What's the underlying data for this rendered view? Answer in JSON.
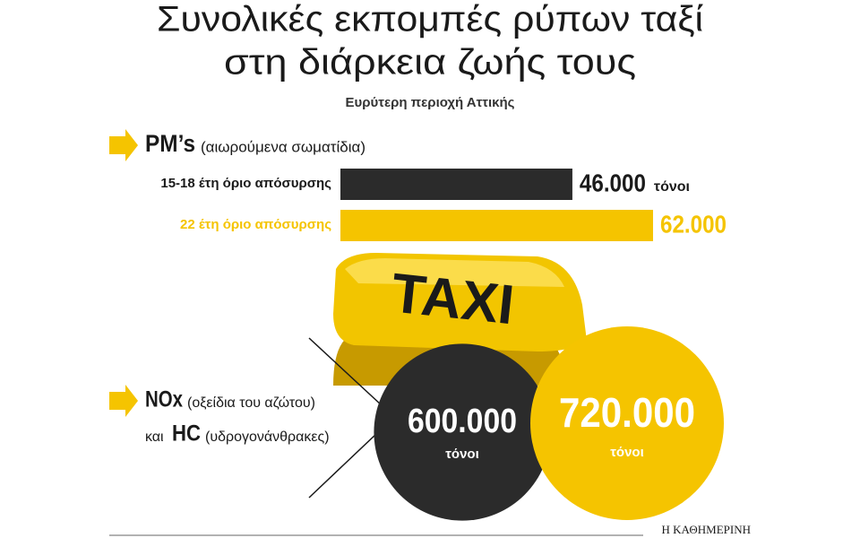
{
  "title": [
    "Συνολικές εκπομπές ρύπων ταξί",
    "στη διάρκεια ζωής τους"
  ],
  "subtitle": "Ευρύτερη περιοχή Αττικής",
  "chart_data": [
    {
      "type": "bar",
      "title": "PM’s",
      "subtitle": "(αιωρούμενα σωματίδια)",
      "categories": [
        "15-18 έτη όριο απόσυρσης",
        "22 έτη όριο απόσυρσης"
      ],
      "values": [
        46000,
        62000
      ],
      "value_labels": [
        "46.000",
        "62.000"
      ],
      "unit": "τόνοι",
      "colors": [
        "#2b2b2b",
        "#f5c400"
      ]
    },
    {
      "type": "bubble",
      "title": [
        "NOx",
        "HC"
      ],
      "subtitle": [
        "(οξείδια του αζώτου)",
        "(υδρογονάνθρακες)"
      ],
      "conjunction": "και",
      "values": [
        600000,
        720000
      ],
      "value_labels": [
        "600.000",
        "720.000"
      ],
      "unit": "τόνοι",
      "colors": [
        "#2b2b2b",
        "#f5c400"
      ]
    }
  ],
  "illustration": {
    "text": "TAXI"
  },
  "footer": {
    "source": "Η ΚΑΘΗΜΕΡΙΝΗ"
  }
}
